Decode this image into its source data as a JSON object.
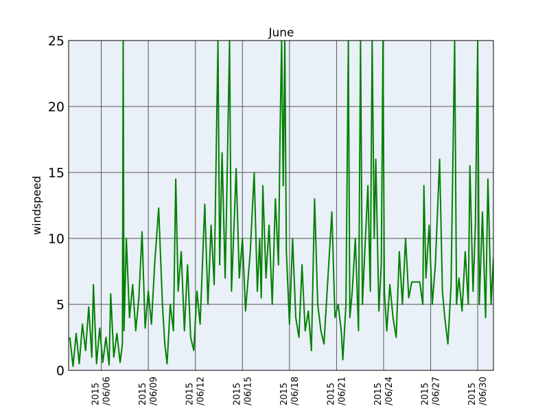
{
  "chart_data": {
    "type": "line",
    "title": "June",
    "ylabel": "windspeed",
    "x": [
      4.0,
      4.2,
      4.4,
      4.6,
      4.8,
      5.0,
      5.2,
      5.4,
      5.5,
      5.7,
      5.9,
      6.1,
      6.3,
      6.5,
      6.6,
      6.8,
      7.0,
      7.2,
      7.35,
      7.4,
      7.45,
      7.6,
      7.8,
      8.0,
      8.2,
      8.4,
      8.6,
      8.8,
      9.0,
      9.2,
      9.4,
      9.66,
      9.9,
      10.05,
      10.2,
      10.4,
      10.6,
      10.75,
      10.9,
      11.1,
      11.3,
      11.5,
      11.7,
      11.9,
      12.1,
      12.3,
      12.6,
      12.8,
      13.0,
      13.2,
      13.44,
      13.55,
      13.7,
      13.9,
      14.0,
      14.18,
      14.3,
      14.5,
      14.6,
      14.8,
      15.0,
      15.2,
      15.5,
      15.75,
      15.95,
      16.1,
      16.2,
      16.3,
      16.5,
      16.7,
      16.9,
      17.1,
      17.3,
      17.4,
      17.5,
      17.6,
      17.7,
      17.8,
      18.0,
      18.2,
      18.4,
      18.6,
      18.8,
      19.0,
      19.2,
      19.4,
      19.6,
      19.8,
      20.0,
      20.2,
      20.4,
      20.7,
      20.9,
      21.1,
      21.3,
      21.4,
      21.6,
      21.75,
      21.85,
      22.0,
      22.2,
      22.4,
      22.53,
      22.65,
      22.8,
      23.0,
      23.15,
      23.27,
      23.4,
      23.5,
      23.7,
      23.85,
      23.96,
      24.05,
      24.2,
      24.4,
      24.6,
      24.8,
      25.0,
      25.2,
      25.4,
      25.6,
      25.8,
      26.3,
      26.5,
      26.57,
      26.7,
      26.9,
      27.1,
      27.3,
      27.57,
      27.75,
      27.9,
      28.1,
      28.3,
      28.53,
      28.65,
      28.8,
      29.0,
      29.2,
      29.4,
      29.5,
      29.7,
      29.85,
      30.0,
      30.1,
      30.3,
      30.5,
      30.65,
      30.85,
      31.0
    ],
    "values": [
      2.5,
      0.3,
      2.8,
      0.5,
      3.5,
      1.5,
      4.8,
      1.0,
      6.5,
      0.5,
      3.2,
      0.6,
      2.5,
      0.4,
      5.8,
      1.0,
      2.8,
      0.6,
      2.0,
      25,
      3.0,
      10,
      4,
      6.5,
      3.0,
      5.5,
      10.5,
      3.2,
      6,
      3.5,
      8,
      12.3,
      5,
      2,
      0.5,
      5,
      3,
      14.5,
      6,
      9,
      3,
      8,
      2.5,
      1.5,
      6,
      3.5,
      12.6,
      5,
      11,
      6.5,
      25,
      8,
      16.5,
      7,
      13,
      25,
      6,
      12,
      15.3,
      7,
      10,
      4.5,
      9,
      15,
      6,
      10,
      5.5,
      14,
      7,
      11,
      5,
      13,
      8,
      18,
      25,
      14,
      25,
      9,
      3.5,
      10,
      4,
      2.5,
      8,
      3,
      4.5,
      1.5,
      13,
      5,
      3,
      2,
      6,
      12,
      4,
      5,
      3,
      0.8,
      5,
      25,
      4,
      6,
      10,
      3,
      25,
      5,
      9,
      14,
      6,
      25,
      10,
      16,
      4.5,
      8,
      25,
      6,
      3,
      6.5,
      4,
      2.5,
      9,
      5,
      10,
      5.5,
      6.7,
      6.7,
      5,
      14,
      7,
      11,
      5,
      8,
      16,
      6,
      4,
      2,
      6.5,
      25,
      5,
      7,
      4.5,
      9,
      5,
      15.5,
      6,
      11,
      25,
      5,
      12,
      4,
      14.5,
      5,
      8.5
    ],
    "color": "#008000",
    "xlim": [
      3.92,
      31.0
    ],
    "xticks": [
      {
        "value": 6,
        "label": "2015\n/06/06"
      },
      {
        "value": 9,
        "label": "2015\n/06/09"
      },
      {
        "value": 12,
        "label": "2015\n/06/12"
      },
      {
        "value": 15,
        "label": "2015\n/06/15"
      },
      {
        "value": 18,
        "label": "2015\n/06/18"
      },
      {
        "value": 21,
        "label": "2015\n/06/21"
      },
      {
        "value": 24,
        "label": "2015\n/06/24"
      },
      {
        "value": 27,
        "label": "2015\n/06/27"
      },
      {
        "value": 30,
        "label": "2015\n/06/30"
      }
    ],
    "ylim": [
      0,
      25
    ],
    "yticks": [
      0,
      5,
      10,
      15,
      20,
      25
    ],
    "grid": true
  }
}
